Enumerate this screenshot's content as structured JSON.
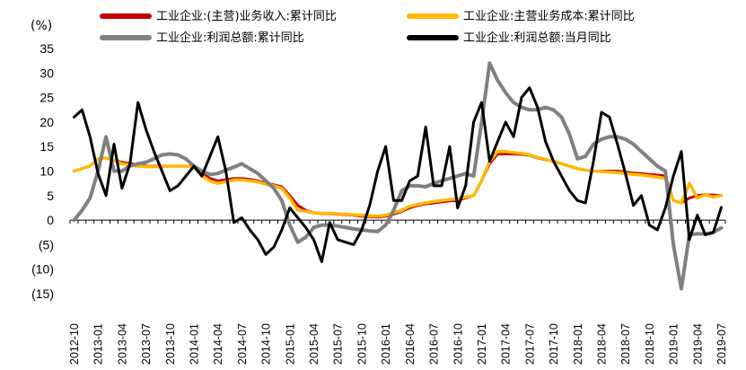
{
  "chart_data": {
    "type": "line",
    "ylabel": "(%)",
    "ylim": [
      -15,
      35
    ],
    "yticks": [
      "35",
      "30",
      "25",
      "20",
      "15",
      "10",
      "5",
      "0",
      "(5)",
      "(10)",
      "(15)"
    ],
    "ytick_values": [
      35,
      30,
      25,
      20,
      15,
      10,
      5,
      0,
      -5,
      -10,
      -15
    ],
    "legend_position": "top",
    "grid": false,
    "x_tick_labels": [
      "2012-10",
      "2013-01",
      "2013-04",
      "2013-07",
      "2013-10",
      "2014-01",
      "2014-04",
      "2014-07",
      "2014-10",
      "2015-01",
      "2015-04",
      "2015-07",
      "2015-10",
      "2016-01",
      "2016-04",
      "2016-07",
      "2016-10",
      "2017-01",
      "2017-04",
      "2017-07",
      "2017-10",
      "2018-01",
      "2018-04",
      "2018-07",
      "2018-10",
      "2019-01",
      "2019-04",
      "2019-07"
    ],
    "x": [
      "2012-10",
      "2012-11",
      "2012-12",
      "2013-01",
      "2013-02",
      "2013-03",
      "2013-04",
      "2013-05",
      "2013-06",
      "2013-07",
      "2013-08",
      "2013-09",
      "2013-10",
      "2013-11",
      "2013-12",
      "2014-01",
      "2014-02",
      "2014-03",
      "2014-04",
      "2014-05",
      "2014-06",
      "2014-07",
      "2014-08",
      "2014-09",
      "2014-10",
      "2014-11",
      "2014-12",
      "2015-01",
      "2015-02",
      "2015-03",
      "2015-04",
      "2015-05",
      "2015-06",
      "2015-07",
      "2015-08",
      "2015-09",
      "2015-10",
      "2015-11",
      "2015-12",
      "2016-01",
      "2016-02",
      "2016-03",
      "2016-04",
      "2016-05",
      "2016-06",
      "2016-07",
      "2016-08",
      "2016-09",
      "2016-10",
      "2016-11",
      "2016-12",
      "2017-01",
      "2017-02",
      "2017-03",
      "2017-04",
      "2017-05",
      "2017-06",
      "2017-07",
      "2017-08",
      "2017-09",
      "2017-10",
      "2017-11",
      "2017-12",
      "2018-01",
      "2018-02",
      "2018-03",
      "2018-04",
      "2018-05",
      "2018-06",
      "2018-07",
      "2018-08",
      "2018-09",
      "2018-10",
      "2018-11",
      "2018-12",
      "2019-01",
      "2019-02",
      "2019-03",
      "2019-04",
      "2019-05",
      "2019-06",
      "2019-07"
    ],
    "series": [
      {
        "name": "工业企业:(主营)业务收入:累计同比",
        "color": "#C00000",
        "values": [
          10,
          10.5,
          11,
          12.5,
          12.7,
          12.2,
          11.8,
          11.5,
          11.3,
          11,
          11,
          11,
          11,
          11,
          11,
          11,
          9.5,
          8.5,
          8,
          8.2,
          8.5,
          8.5,
          8.3,
          8,
          7.5,
          7.2,
          6.8,
          5,
          3,
          2,
          1.5,
          1.3,
          1.3,
          1.2,
          1.1,
          1,
          0.8,
          0.7,
          0.6,
          0.8,
          1.2,
          1.8,
          2.5,
          3,
          3.3,
          3.5,
          3.7,
          3.9,
          4,
          4.5,
          5,
          8,
          11.5,
          13.5,
          13.5,
          13.5,
          13.4,
          13.2,
          12.7,
          12.3,
          12,
          11.5,
          11,
          10.5,
          10.2,
          10,
          10,
          10,
          10,
          9.8,
          9.6,
          9.5,
          9.3,
          9.2,
          9,
          4,
          3.5,
          4.5,
          5,
          5.2,
          5.1,
          5
        ]
      },
      {
        "name": "工业企业:主营业务成本:累计同比",
        "color": "#FFB800",
        "values": [
          10,
          10.5,
          11,
          12.5,
          12.7,
          12.2,
          11.5,
          11.2,
          11,
          10.9,
          10.9,
          10.9,
          11,
          11,
          11,
          10.8,
          9,
          8,
          7.5,
          7.8,
          8.2,
          8.2,
          8,
          7.8,
          7.3,
          7,
          6.5,
          4.5,
          2,
          1.8,
          1.5,
          1.4,
          1.4,
          1.3,
          1.2,
          1.1,
          1,
          0.9,
          0.8,
          1,
          1.5,
          2,
          2.8,
          3.2,
          3.5,
          3.8,
          4,
          4.2,
          4.3,
          4.7,
          5,
          8,
          12,
          14,
          14,
          13.8,
          13.6,
          13.3,
          12.8,
          12.4,
          12,
          11.5,
          11,
          10.5,
          10.2,
          10,
          9.9,
          9.8,
          9.7,
          9.5,
          9.3,
          9.2,
          9,
          8.8,
          8.5,
          4,
          3.5,
          7.5,
          4.5,
          5.2,
          4.7,
          5
        ]
      },
      {
        "name": "工业企业:利润总额:累计同比",
        "color": "#808080",
        "values": [
          0,
          2,
          4.5,
          10,
          17,
          10,
          10,
          11,
          11.5,
          11.8,
          12.5,
          13.3,
          13.5,
          13.3,
          12.5,
          11,
          10,
          9.3,
          9.5,
          10.2,
          10.8,
          11.5,
          10.5,
          9.5,
          8,
          6.5,
          4,
          -1,
          -4.5,
          -3.5,
          -1.5,
          -1,
          -1,
          -1.2,
          -1.5,
          -1.8,
          -2,
          -2.2,
          -2.3,
          -1,
          2,
          6,
          7,
          7,
          6.8,
          7.5,
          8,
          8.5,
          9,
          9.5,
          9,
          20,
          32,
          28.5,
          26,
          24,
          23,
          22.5,
          22.5,
          23,
          22.5,
          21,
          17.5,
          12.5,
          13,
          15.5,
          16.5,
          17,
          17,
          16.5,
          15.5,
          14,
          12.5,
          11,
          10,
          -5,
          -14,
          -3,
          -2.8,
          -2.8,
          -2.5,
          -1.6
        ]
      },
      {
        "name": "工业企业:利润总额:当月同比",
        "color": "#000000",
        "values": [
          21,
          22.5,
          17,
          9.5,
          5,
          15.5,
          6.5,
          11.5,
          24,
          18.5,
          14,
          10,
          6,
          7,
          9,
          11,
          9,
          13,
          17,
          10,
          -0.5,
          0.5,
          -2,
          -4,
          -7,
          -5.5,
          -2,
          2.5,
          0.5,
          -1.5,
          -4,
          -8.5,
          -0.5,
          -4,
          -4.5,
          -5,
          -2,
          3,
          10,
          15,
          4,
          4,
          8,
          9,
          19,
          7,
          7,
          15,
          2.5,
          7,
          20,
          24,
          12,
          16,
          20,
          17,
          25,
          27,
          23,
          16,
          12,
          9,
          6,
          4,
          3.5,
          12,
          22,
          21,
          15.5,
          9.5,
          3,
          5,
          -1,
          -2,
          2.5,
          9,
          14,
          -4,
          1,
          -3,
          -2.5,
          2.6
        ]
      }
    ]
  }
}
